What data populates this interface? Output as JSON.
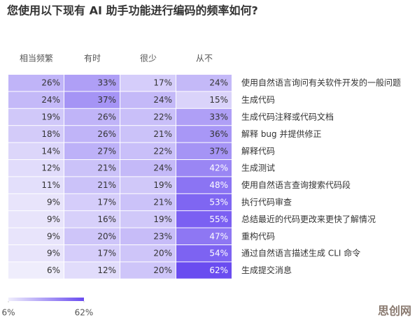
{
  "chart_data": {
    "type": "heatmap",
    "title": "您使用以下现有 AI 助手功能进行编码的频率如何?",
    "categories": [
      "使用自然语言询问有关软件开发的一般问题",
      "生成代码",
      "生成代码注释或代码文档",
      "解释 bug 并提供修正",
      "解释代码",
      "生成测试",
      "使用自然语言查询搜索代码段",
      "执行代码审查",
      "总结最近的代码更改来更快了解情况",
      "重构代码",
      "通过自然语言描述生成 CLI 命令",
      "生成提交消息"
    ],
    "series": [
      {
        "name": "相当频繁",
        "values": [
          26,
          24,
          19,
          18,
          14,
          12,
          11,
          9,
          9,
          9,
          9,
          6
        ],
        "value_labels": [
          "26%",
          "24%",
          "19%",
          "18%",
          "14%",
          "12%",
          "11%",
          "9%",
          "9%",
          "9%",
          "9%",
          "6%"
        ]
      },
      {
        "name": "有时",
        "values": [
          33,
          37,
          26,
          26,
          27,
          21,
          21,
          17,
          16,
          20,
          17,
          12
        ],
        "value_labels": [
          "33%",
          "37%",
          "26%",
          "26%",
          "27%",
          "21%",
          "21%",
          "17%",
          "16%",
          "20%",
          "17%",
          "12%"
        ]
      },
      {
        "name": "很少",
        "values": [
          17,
          24,
          22,
          21,
          22,
          24,
          19,
          21,
          19,
          23,
          20,
          20
        ],
        "value_labels": [
          "17%",
          "24%",
          "22%",
          "21%",
          "22%",
          "24%",
          "19%",
          "21%",
          "19%",
          "23%",
          "20%",
          "20%"
        ]
      },
      {
        "name": "从不",
        "values": [
          24,
          15,
          33,
          36,
          37,
          42,
          48,
          53,
          55,
          47,
          54,
          62
        ],
        "value_labels": [
          "24%",
          "15%",
          "33%",
          "36%",
          "37%",
          "42%",
          "48%",
          "53%",
          "55%",
          "47%",
          "54%",
          "62%"
        ]
      }
    ],
    "colorscale": [
      "#efedfc",
      "#6a4cf0"
    ],
    "clim": [
      6,
      62
    ],
    "cticks": [
      {
        "value": 6,
        "label": "6%"
      },
      {
        "value": 62,
        "label": "62%"
      }
    ],
    "watermark": "思创网"
  }
}
